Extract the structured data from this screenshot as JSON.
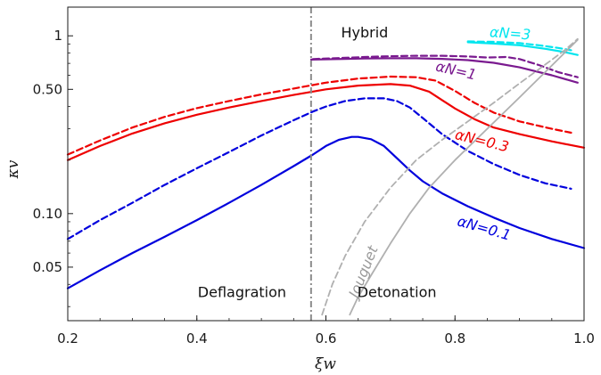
{
  "chart_data": {
    "type": "line",
    "xlabel": "ξw",
    "ylabel": "κv",
    "xlim": [
      0.2,
      1.0
    ],
    "ylim": [
      0.025,
      1.45
    ],
    "yscale": "log",
    "grid": false,
    "x_ticks": [
      0.2,
      0.4,
      0.6,
      0.8,
      1.0
    ],
    "x_tick_labels": [
      "0.2",
      "0.4",
      "0.6",
      "0.8",
      "1.0"
    ],
    "y_ticks": [
      0.05,
      0.1,
      0.5,
      1.0
    ],
    "y_tick_labels": [
      "0.05",
      "0.10",
      "0.50",
      "1"
    ],
    "vertical_line": {
      "x": 0.577,
      "style": "dash-dot",
      "color": "#8c8c8c"
    },
    "annotations": [
      {
        "id": "hybrid",
        "text": "Hybrid",
        "x": 0.66,
        "y": 0.98
      },
      {
        "id": "deflagration",
        "text": "Deflagration",
        "x": 0.47,
        "y": 0.034
      },
      {
        "id": "detonation",
        "text": "Detonation",
        "x": 0.71,
        "y": 0.034
      }
    ],
    "series": [
      {
        "key": "a01_solid",
        "color": "#0000dd",
        "dash": false,
        "x": [
          0.2,
          0.25,
          0.3,
          0.35,
          0.4,
          0.45,
          0.5,
          0.55,
          0.58,
          0.6,
          0.62,
          0.64,
          0.65,
          0.67,
          0.69,
          0.71,
          0.73,
          0.75,
          0.78,
          0.82,
          0.86,
          0.9,
          0.95,
          1.0
        ],
        "y": [
          0.038,
          0.048,
          0.06,
          0.074,
          0.092,
          0.115,
          0.145,
          0.185,
          0.215,
          0.24,
          0.26,
          0.27,
          0.27,
          0.262,
          0.24,
          0.205,
          0.175,
          0.152,
          0.13,
          0.11,
          0.095,
          0.083,
          0.072,
          0.064
        ]
      },
      {
        "key": "a01_dashed",
        "color": "#0000dd",
        "dash": true,
        "x": [
          0.2,
          0.25,
          0.3,
          0.35,
          0.4,
          0.45,
          0.5,
          0.55,
          0.58,
          0.6,
          0.63,
          0.66,
          0.69,
          0.71,
          0.73,
          0.75,
          0.78,
          0.82,
          0.86,
          0.9,
          0.94,
          0.98
        ],
        "y": [
          0.072,
          0.092,
          0.115,
          0.145,
          0.18,
          0.222,
          0.275,
          0.335,
          0.375,
          0.4,
          0.43,
          0.445,
          0.445,
          0.43,
          0.395,
          0.345,
          0.28,
          0.225,
          0.19,
          0.165,
          0.148,
          0.138
        ]
      },
      {
        "key": "a03_solid",
        "color": "#ee0000",
        "dash": false,
        "x": [
          0.2,
          0.25,
          0.3,
          0.35,
          0.4,
          0.45,
          0.5,
          0.55,
          0.6,
          0.65,
          0.7,
          0.73,
          0.76,
          0.78,
          0.8,
          0.83,
          0.86,
          0.9,
          0.95,
          1.0
        ],
        "y": [
          0.2,
          0.24,
          0.282,
          0.322,
          0.36,
          0.395,
          0.43,
          0.465,
          0.5,
          0.525,
          0.535,
          0.525,
          0.485,
          0.435,
          0.39,
          0.34,
          0.305,
          0.28,
          0.255,
          0.235
        ]
      },
      {
        "key": "a03_dashed",
        "color": "#ee0000",
        "dash": true,
        "x": [
          0.2,
          0.25,
          0.3,
          0.35,
          0.4,
          0.45,
          0.5,
          0.55,
          0.6,
          0.65,
          0.7,
          0.74,
          0.77,
          0.8,
          0.83,
          0.86,
          0.9,
          0.95,
          0.98
        ],
        "y": [
          0.215,
          0.258,
          0.305,
          0.35,
          0.392,
          0.43,
          0.468,
          0.505,
          0.545,
          0.575,
          0.59,
          0.585,
          0.56,
          0.49,
          0.42,
          0.37,
          0.33,
          0.3,
          0.285
        ]
      },
      {
        "key": "a1_solid",
        "color": "#7a1a8f",
        "dash": false,
        "x": [
          0.577,
          0.62,
          0.66,
          0.7,
          0.74,
          0.78,
          0.82,
          0.86,
          0.9,
          0.95,
          0.99
        ],
        "y": [
          0.735,
          0.74,
          0.745,
          0.748,
          0.748,
          0.742,
          0.73,
          0.705,
          0.665,
          0.6,
          0.545
        ]
      },
      {
        "key": "a1_dashed",
        "color": "#7a1a8f",
        "dash": true,
        "x": [
          0.58,
          0.62,
          0.66,
          0.7,
          0.74,
          0.78,
          0.82,
          0.85,
          0.88,
          0.9,
          0.93,
          0.96,
          0.99
        ],
        "y": [
          0.74,
          0.75,
          0.76,
          0.768,
          0.772,
          0.772,
          0.765,
          0.755,
          0.76,
          0.74,
          0.685,
          0.625,
          0.585
        ]
      },
      {
        "key": "a3_solid",
        "color": "#00e5ee",
        "dash": false,
        "x": [
          0.82,
          0.86,
          0.9,
          0.94,
          0.97,
          0.99
        ],
        "y": [
          0.92,
          0.905,
          0.885,
          0.845,
          0.81,
          0.78
        ]
      },
      {
        "key": "a3_dashed",
        "color": "#00e5ee",
        "dash": true,
        "x": [
          0.82,
          0.86,
          0.9,
          0.93,
          0.96,
          0.98
        ],
        "y": [
          0.93,
          0.925,
          0.91,
          0.885,
          0.855,
          0.83
        ]
      },
      {
        "key": "jouguet_solid",
        "color": "#b0b0b0",
        "dash": false,
        "x": [
          0.637,
          0.65,
          0.67,
          0.7,
          0.73,
          0.76,
          0.8,
          0.85,
          0.9,
          0.95,
          0.99
        ],
        "y": [
          0.027,
          0.034,
          0.045,
          0.068,
          0.1,
          0.14,
          0.2,
          0.3,
          0.45,
          0.68,
          0.95
        ]
      },
      {
        "key": "jouguet_dashed",
        "color": "#b0b0b0",
        "dash": true,
        "x": [
          0.594,
          0.61,
          0.63,
          0.66,
          0.7,
          0.74,
          0.78,
          0.82,
          0.86,
          0.9,
          0.94,
          0.97,
          0.99
        ],
        "y": [
          0.027,
          0.04,
          0.058,
          0.09,
          0.14,
          0.2,
          0.26,
          0.33,
          0.42,
          0.54,
          0.69,
          0.83,
          0.96
        ]
      }
    ],
    "series_labels": [
      {
        "key": "a01",
        "text": "αN=0.1",
        "color": "#0000dd",
        "x": 0.843,
        "y": 0.078,
        "rotate": 16
      },
      {
        "key": "a03",
        "text": "αN=0.3",
        "color": "#ee0000",
        "x": 0.84,
        "y": 0.242,
        "rotate": 14
      },
      {
        "key": "a1",
        "text": "αN=1",
        "color": "#7a1a8f",
        "x": 0.8,
        "y": 0.6,
        "rotate": 13
      },
      {
        "key": "a3",
        "text": "αN=3",
        "color": "#00e5ee",
        "x": 0.885,
        "y": 0.97,
        "rotate": 4
      },
      {
        "key": "jouguet",
        "text": "Jouguet",
        "color": "#9a9a9a",
        "x": 0.665,
        "y": 0.046,
        "rotate": -68
      }
    ]
  }
}
